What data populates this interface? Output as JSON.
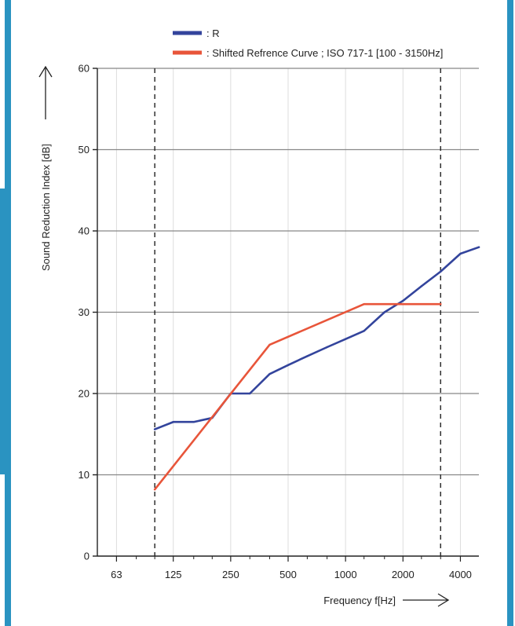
{
  "colors": {
    "frame_border": "#2a93c1",
    "left_tab": "#2a93c1",
    "grid_major": "#888888",
    "grid_minor": "#dddddd",
    "background": "#ffffff",
    "series_r": "#33449c",
    "series_ref": "#e8553a"
  },
  "chart_data": {
    "type": "line",
    "title": "",
    "xlabel": "Frequency f[Hz]",
    "ylabel": "Sound Reduction Index [dB]",
    "x_scale": "log",
    "xlim": [
      50,
      5000
    ],
    "ylim": [
      0,
      60
    ],
    "y_ticks": [
      0,
      10,
      20,
      30,
      40,
      50,
      60
    ],
    "x_ticks": [
      63,
      125,
      250,
      500,
      1000,
      2000,
      4000
    ],
    "x_tick_labels": [
      "63",
      "125",
      "250",
      "500",
      "1000",
      "2000",
      "4000"
    ],
    "x_minor_ticks": [
      80,
      100,
      160,
      200,
      315,
      400,
      630,
      800,
      1250,
      1600,
      2500,
      3150
    ],
    "vertical_reference_lines_hz": [
      100,
      3150
    ],
    "grid": true,
    "legend_position": "top",
    "series": [
      {
        "name": "R",
        "color": "#33449c",
        "x": [
          100,
          125,
          160,
          200,
          250,
          315,
          400,
          500,
          630,
          800,
          1000,
          1250,
          1600,
          2000,
          2500,
          3150,
          4000,
          5000
        ],
        "y": [
          15.6,
          16.5,
          16.5,
          17.0,
          20.0,
          20.0,
          22.4,
          23.5,
          24.6,
          25.7,
          26.7,
          27.7,
          30.0,
          31.4,
          33.2,
          35.0,
          37.2,
          38.0
        ]
      },
      {
        "name": "Shifted Refrence Curve ; ISO 717-1 [100 - 3150Hz]",
        "color": "#e8553a",
        "x": [
          100,
          400,
          1250,
          3150
        ],
        "y": [
          8.2,
          26.0,
          31.0,
          31.0
        ]
      }
    ]
  }
}
